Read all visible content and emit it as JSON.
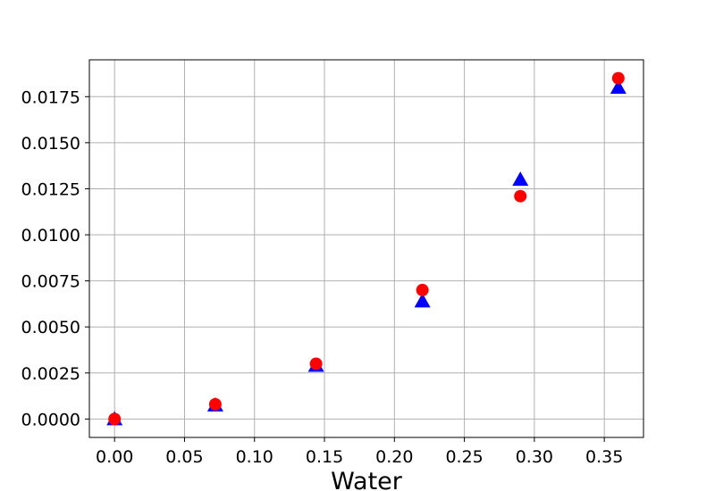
{
  "chart_data": {
    "type": "scatter",
    "title": "",
    "xlabel": "Water",
    "ylabel": "",
    "xlim": [
      -0.018,
      0.378
    ],
    "ylim": [
      -0.001,
      0.0195
    ],
    "grid": true,
    "legend": "none",
    "x_ticks": [
      "0.00",
      "0.05",
      "0.10",
      "0.15",
      "0.20",
      "0.25",
      "0.30",
      "0.35"
    ],
    "y_ticks": [
      "0.0000",
      "0.0025",
      "0.0050",
      "0.0075",
      "0.0100",
      "0.0125",
      "0.0150",
      "0.0175"
    ],
    "series": [
      {
        "marker": "triangle",
        "color": "#0000ff",
        "points": [
          {
            "x": 0.0,
            "y": 0.0
          },
          {
            "x": 0.072,
            "y": 0.00075
          },
          {
            "x": 0.144,
            "y": 0.0029
          },
          {
            "x": 0.22,
            "y": 0.0064
          },
          {
            "x": 0.29,
            "y": 0.013
          },
          {
            "x": 0.36,
            "y": 0.018
          }
        ]
      },
      {
        "marker": "circle",
        "color": "#ff0000",
        "points": [
          {
            "x": 0.0,
            "y": 0.0
          },
          {
            "x": 0.072,
            "y": 0.0008
          },
          {
            "x": 0.144,
            "y": 0.003
          },
          {
            "x": 0.22,
            "y": 0.007
          },
          {
            "x": 0.29,
            "y": 0.0121
          },
          {
            "x": 0.36,
            "y": 0.0185
          }
        ]
      }
    ]
  }
}
